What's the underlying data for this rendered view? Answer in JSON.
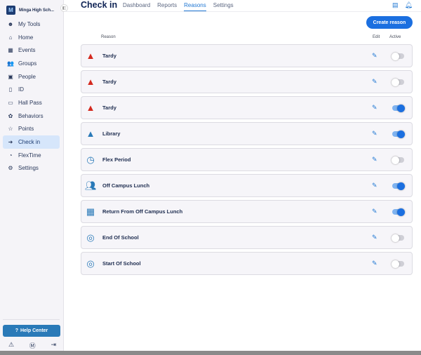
{
  "sidebar": {
    "school": "Minga High Sch...",
    "items": [
      {
        "label": "My Tools",
        "icon": "smile-icon",
        "glyph": "☻"
      },
      {
        "label": "Home",
        "icon": "home-icon",
        "glyph": "⌂"
      },
      {
        "label": "Events",
        "icon": "calendar-icon",
        "glyph": "▦"
      },
      {
        "label": "Groups",
        "icon": "groups-icon",
        "glyph": "👥"
      },
      {
        "label": "People",
        "icon": "people-icon",
        "glyph": "▣"
      },
      {
        "label": "ID",
        "icon": "id-icon",
        "glyph": "▯"
      },
      {
        "label": "Hall Pass",
        "icon": "hall-pass-icon",
        "glyph": "▭"
      },
      {
        "label": "Behaviors",
        "icon": "behaviors-icon",
        "glyph": "✿"
      },
      {
        "label": "Points",
        "icon": "star-icon",
        "glyph": "☆"
      },
      {
        "label": "Check in",
        "icon": "check-in-icon",
        "glyph": "➜",
        "active": true
      },
      {
        "label": "FlexTime",
        "icon": "flextime-icon",
        "glyph": "◔"
      },
      {
        "label": "Settings",
        "icon": "gear-icon",
        "glyph": "⚙"
      }
    ],
    "help_center": "Help Center"
  },
  "header": {
    "title": "Check in",
    "tabs": [
      {
        "label": "Dashboard"
      },
      {
        "label": "Reports"
      },
      {
        "label": "Reasons",
        "active": true
      },
      {
        "label": "Settings"
      }
    ]
  },
  "main": {
    "create_button": "Create reason",
    "columns": {
      "reason": "Reason",
      "edit": "Edit",
      "active": "Active"
    },
    "reasons": [
      {
        "name": "Tardy",
        "icon": "warning-icon",
        "color": "#d42a1f",
        "active": false
      },
      {
        "name": "Tardy",
        "icon": "warning-icon",
        "color": "#d42a1f",
        "active": false
      },
      {
        "name": "Tardy",
        "icon": "warning-icon",
        "color": "#d42a1f",
        "active": true
      },
      {
        "name": "Library",
        "icon": "warning-icon",
        "color": "#2a7ab8",
        "active": true
      },
      {
        "name": "Flex Period",
        "icon": "clock-icon",
        "color": "#2a7ab8",
        "active": false
      },
      {
        "name": "Off Campus Lunch",
        "icon": "people-icon",
        "color": "#2a7ab8",
        "active": true
      },
      {
        "name": "Return From Off Campus Lunch",
        "icon": "board-icon",
        "color": "#2a7ab8",
        "active": true
      },
      {
        "name": "End Of School",
        "icon": "location-icon",
        "color": "#2a7ab8",
        "active": false
      },
      {
        "name": "Start Of School",
        "icon": "location-icon",
        "color": "#2a7ab8",
        "active": false
      }
    ]
  },
  "colors": {
    "accent": "#1b6fe0",
    "help": "#2a7ab8"
  }
}
